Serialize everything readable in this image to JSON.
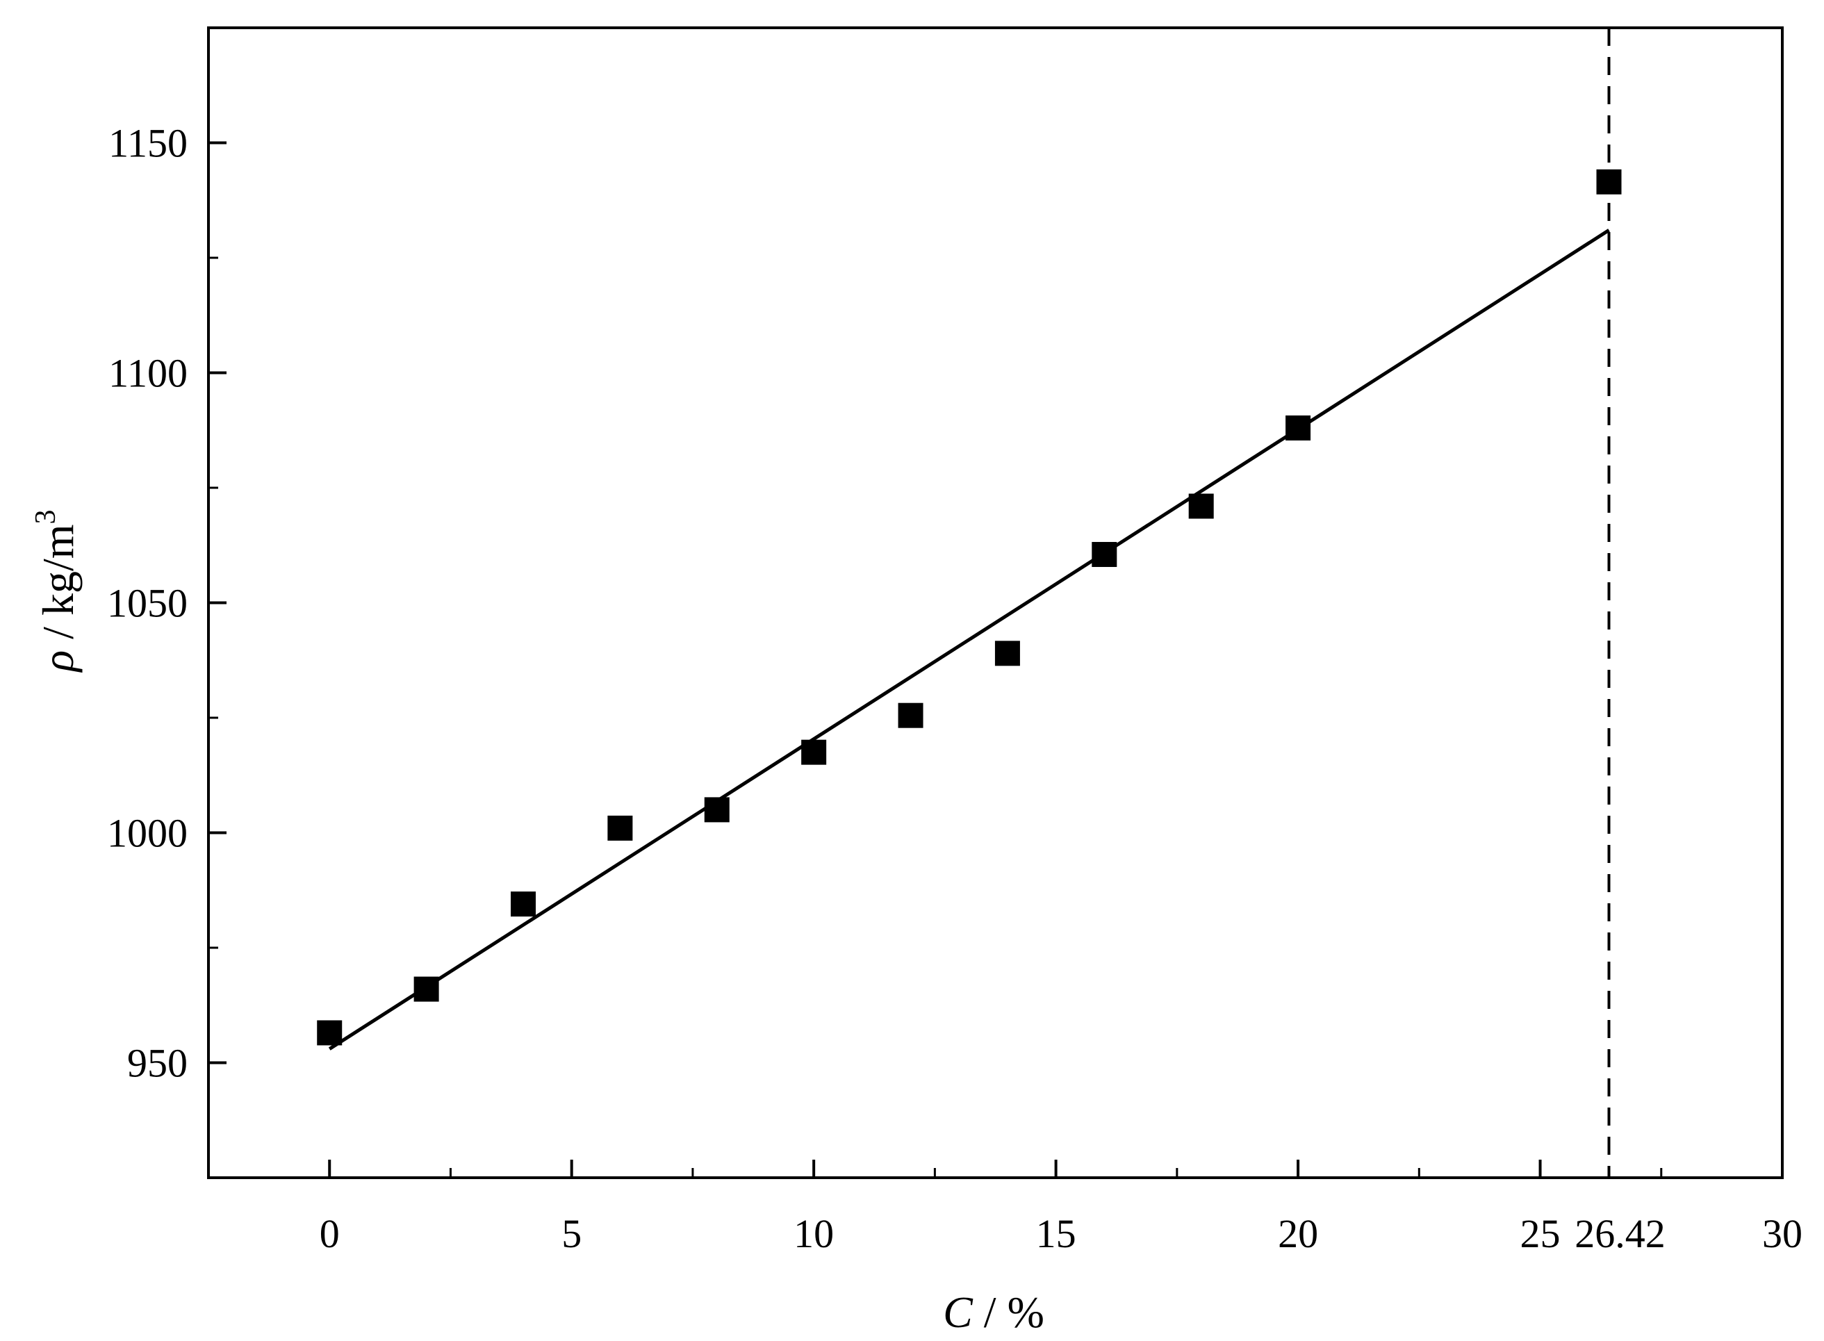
{
  "chart_data": {
    "type": "scatter",
    "xlabel_var": "C",
    "xlabel_unit": " / %",
    "ylabel_var": "ρ",
    "ylabel_unit": "  /  kg/m",
    "ylabel_sup": "3",
    "xlim": [
      -2.5,
      30
    ],
    "ylim": [
      925,
      1175
    ],
    "x_ticks": [
      0,
      5,
      10,
      15,
      20,
      25,
      30
    ],
    "x_tick_labels": [
      "0",
      "5",
      "10",
      "15",
      "20",
      "25",
      "30"
    ],
    "x_minor_ticks": [
      2.5,
      7.5,
      12.5,
      17.5,
      22.5,
      27.5
    ],
    "y_ticks": [
      950,
      1000,
      1050,
      1100,
      1150
    ],
    "y_tick_labels": [
      "950",
      "1000",
      "1050",
      "1100",
      "1150"
    ],
    "y_minor_ticks": [
      975,
      1025,
      1075,
      1125
    ],
    "series": [
      {
        "marker": "square",
        "x": [
          0,
          2,
          4,
          6,
          8,
          10,
          12,
          14,
          16,
          18,
          20,
          26.42
        ],
        "y": [
          956.5,
          966,
          984.5,
          1001,
          1005,
          1017.5,
          1025.5,
          1039,
          1060.5,
          1071,
          1088,
          1141.5
        ]
      }
    ],
    "fit_line": {
      "x": [
        0,
        26.42
      ],
      "y": [
        953,
        1131
      ]
    },
    "reference_line": {
      "x": 26.42,
      "label": "26.42",
      "style": "dashed"
    },
    "grid": false,
    "legend": "none"
  },
  "colors": {
    "axis": "#000000",
    "marker": "#000000",
    "fit_line": "#000000",
    "background": "#ffffff"
  }
}
